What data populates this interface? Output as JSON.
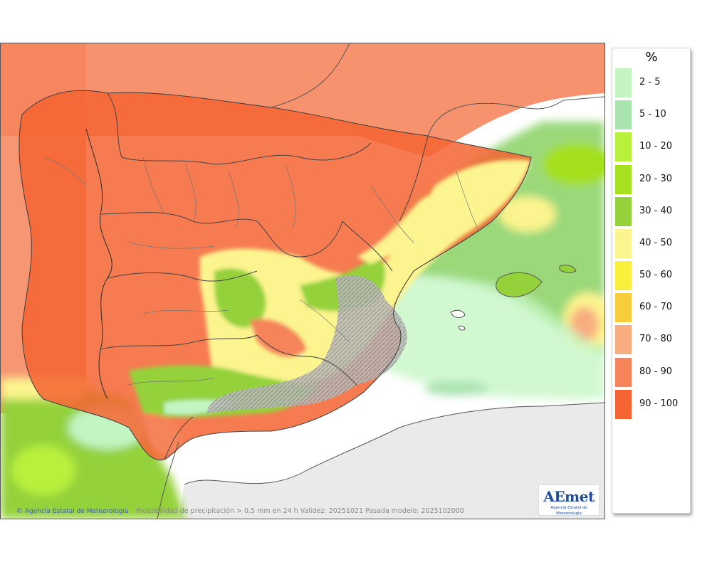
{
  "map": {
    "caption": "Probabilidad de precipitación > 0.5 mm en 24 h Validez: 20251021 Pasada modelo: 2025102000",
    "copyright": "© Agencia Estatal de Meteorología",
    "logo_text": "AEmet",
    "logo_subtitle": "Agencia Estatal de Meteorología"
  },
  "legend": {
    "title": "%",
    "items": [
      {
        "label": "2 - 5",
        "color": "#c3f5c3"
      },
      {
        "label": "5 - 10",
        "color": "#a9e3b0"
      },
      {
        "label": "10 - 20",
        "color": "#b9f03c"
      },
      {
        "label": "20 - 30",
        "color": "#a6e01e"
      },
      {
        "label": "30 - 40",
        "color": "#94d13a"
      },
      {
        "label": "40 - 50",
        "color": "#fcf48e"
      },
      {
        "label": "50 - 60",
        "color": "#faf03c"
      },
      {
        "label": "60 - 70",
        "color": "#f8cd3c"
      },
      {
        "label": "70 - 80",
        "color": "#f8ad80"
      },
      {
        "label": "80 - 90",
        "color": "#f5845a"
      },
      {
        "label": "90 - 100",
        "color": "#f56432"
      }
    ]
  }
}
